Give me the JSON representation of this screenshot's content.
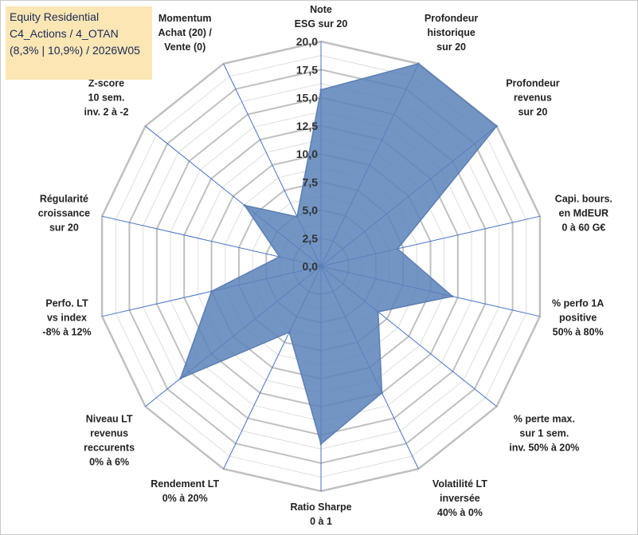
{
  "title": {
    "line1": "Equity Residential",
    "line2": "C4_Actions / 4_OTAN",
    "line3": "(8,3% | 10,9%) / 2026W05"
  },
  "chart_data": {
    "type": "radar",
    "rmin": 0,
    "rmax": 20,
    "ticks": [
      "0,0",
      "2,5",
      "5,0",
      "7,5",
      "10,0",
      "12,5",
      "15,0",
      "17,5",
      "20,0"
    ],
    "tick_values": [
      0,
      2.5,
      5,
      7.5,
      10,
      12.5,
      15,
      17.5,
      20
    ],
    "grid": true,
    "axes": [
      {
        "label": [
          "Note",
          "ESG sur 20"
        ],
        "value": 15.7
      },
      {
        "label": [
          "Profondeur",
          "historique",
          "sur 20"
        ],
        "value": 20.0
      },
      {
        "label": [
          "Profondeur",
          "revenus",
          "sur 20"
        ],
        "value": 20.0
      },
      {
        "label": [
          "Capi. bours.",
          "en MdEUR",
          "0 à 60 G€"
        ],
        "value": 7.0
      },
      {
        "label": [
          "% perfo 1A",
          "positive",
          "50% à 80%"
        ],
        "value": 12.0
      },
      {
        "label": [
          "% perte max.",
          "sur 1 sem.",
          "inv. 50% à 20%"
        ],
        "value": 6.5
      },
      {
        "label": [
          "Volatilité LT",
          "inversée",
          "40% à 0%"
        ],
        "value": 12.5
      },
      {
        "label": [
          "Ratio Sharpe",
          "0 à 1"
        ],
        "value": 15.8
      },
      {
        "label": [
          "Rendement LT",
          "0% à 20%"
        ],
        "value": 6.5
      },
      {
        "label": [
          "Niveau LT",
          "revenus",
          "reccurents",
          "0% à 6%"
        ],
        "value": 16.0
      },
      {
        "label": [
          "Perfo. LT",
          "vs index",
          "-8% à 12%"
        ],
        "value": 10.0
      },
      {
        "label": [
          "Régularité",
          "croissance",
          "sur 20"
        ],
        "value": 3.8
      },
      {
        "label": [
          "Z-score",
          "10 sem.",
          "inv. 2 à -2"
        ],
        "value": 8.7
      },
      {
        "label": [
          "Momentum",
          "Achat (20) /",
          "Vente (0)"
        ],
        "value": 4.9
      }
    ],
    "colors": {
      "fill": "#5b83ba",
      "stroke": "#5d7fb3",
      "grid": "#c8c8c8",
      "spoke": "#4472c4"
    }
  }
}
